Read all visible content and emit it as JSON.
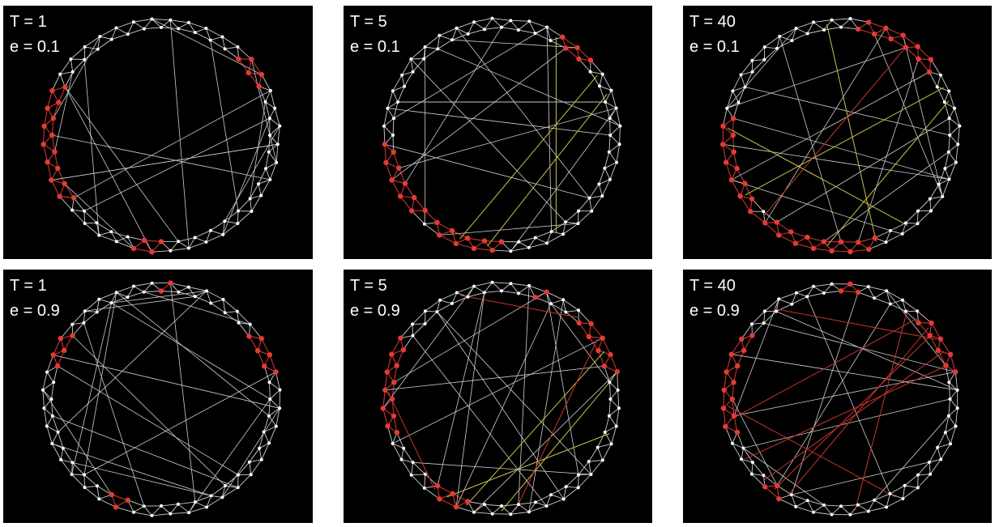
{
  "panels": [
    {
      "t_label": "T = 1",
      "e_label": "e = 0.1",
      "T": 1,
      "e": 0.1,
      "red_arcs": [
        [
          0.12,
          0.18
        ],
        [
          0.5,
          0.54
        ],
        [
          0.64,
          0.69
        ],
        [
          0.7,
          0.83
        ]
      ],
      "yellow_chords": [],
      "red_chords": [],
      "chords": 18
    },
    {
      "t_label": "T = 5",
      "e_label": "e = 0.1",
      "T": 5,
      "e": 0.1,
      "red_arcs": [
        [
          0.08,
          0.14
        ],
        [
          0.5,
          0.6
        ],
        [
          0.62,
          0.74
        ]
      ],
      "yellow_chords": [
        [
          0.16,
          0.56
        ],
        [
          0.19,
          0.52
        ],
        [
          0.08,
          0.42
        ]
      ],
      "red_chords": [],
      "chords": 16
    },
    {
      "t_label": "T = 40",
      "e_label": "e = 0.1",
      "T": 40,
      "e": 0.1,
      "red_arcs": [
        [
          0.02,
          0.16
        ],
        [
          0.44,
          0.62
        ],
        [
          0.63,
          0.78
        ]
      ],
      "yellow_chords": [
        [
          0.98,
          0.45
        ],
        [
          0.18,
          0.66
        ],
        [
          0.2,
          0.52
        ],
        [
          0.4,
          0.76
        ]
      ],
      "red_chords": [
        [
          0.1,
          0.62
        ]
      ],
      "chords": 14
    },
    {
      "t_label": "T = 1",
      "e_label": "e = 0.9",
      "T": 1,
      "e": 0.9,
      "red_arcs": [
        [
          0.0,
          0.02
        ],
        [
          0.14,
          0.22
        ],
        [
          0.54,
          0.58
        ],
        [
          0.8,
          0.86
        ]
      ],
      "yellow_chords": [],
      "red_chords": [],
      "chords": 20
    },
    {
      "t_label": "T = 5",
      "e_label": "e = 0.9",
      "T": 5,
      "e": 0.9,
      "red_arcs": [
        [
          0.05,
          0.07
        ],
        [
          0.12,
          0.22
        ],
        [
          0.54,
          0.6
        ],
        [
          0.7,
          0.84
        ]
      ],
      "yellow_chords": [
        [
          0.22,
          0.5
        ],
        [
          0.3,
          0.58
        ],
        [
          0.18,
          0.55
        ]
      ],
      "red_chords": [
        [
          0.94,
          0.12
        ],
        [
          0.6,
          0.76
        ],
        [
          0.48,
          0.16
        ]
      ],
      "chords": 16
    },
    {
      "t_label": "T = 40",
      "e_label": "e = 0.9",
      "T": 40,
      "e": 0.9,
      "red_arcs": [
        [
          0.0,
          0.03
        ],
        [
          0.12,
          0.22
        ],
        [
          0.58,
          0.62
        ],
        [
          0.7,
          0.86
        ]
      ],
      "yellow_chords": [],
      "red_chords": [
        [
          0.9,
          0.16
        ],
        [
          0.62,
          0.18
        ],
        [
          0.58,
          0.14
        ],
        [
          0.66,
          0.2
        ],
        [
          0.72,
          0.12
        ],
        [
          0.48,
          0.1
        ],
        [
          0.42,
          0.74
        ],
        [
          0.6,
          0.15
        ]
      ],
      "chords": 14
    }
  ],
  "colors": {
    "background": "#000000",
    "node": "#ffffff",
    "edge": "#cfcfcf",
    "active_node": "#e23b35",
    "active_edge": "#c8342e",
    "yellow_edge": "#c9c24a"
  }
}
